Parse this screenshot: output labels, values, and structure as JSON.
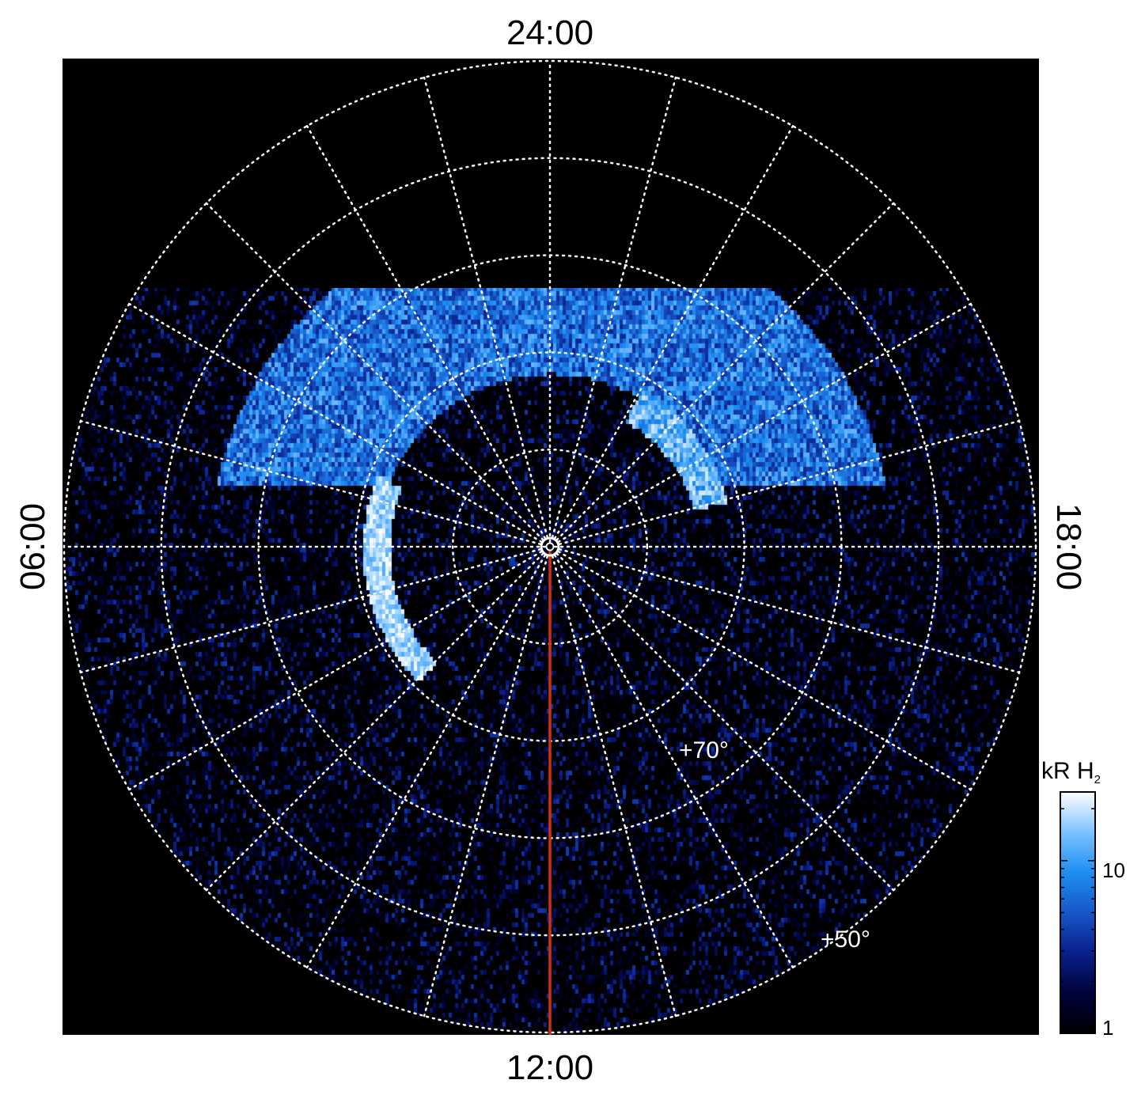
{
  "chart_data": {
    "type": "heatmap",
    "projection": "polar (north pole, local time vs latitude)",
    "local_time_labels": {
      "top": "24:00",
      "bottom": "12:00",
      "left": "06:00",
      "right": "18:00"
    },
    "latitude_labels": [
      {
        "text": "+70°",
        "latitude": 70
      },
      {
        "text": "+50°",
        "latitude": 50
      }
    ],
    "latitude_grid_deg": [
      80,
      70,
      60,
      50,
      40
    ],
    "local_time_grid_step_hours": 1,
    "grid": true,
    "noon_meridian_line": {
      "local_time": "12:00",
      "color": "#d03010"
    },
    "auroral_features": [
      {
        "name": "main oval dawn arc",
        "local_time_range": [
          "04:30",
          "09:00"
        ],
        "latitude": 72
      },
      {
        "name": "dusk arc",
        "local_time_range": [
          "19:00",
          "22:00"
        ],
        "latitude": 73
      },
      {
        "name": "nightside band",
        "local_time_range": [
          "18:00",
          "06:00"
        ],
        "latitude_range": [
          55,
          68
        ]
      }
    ],
    "colorbar": {
      "title": "kR H",
      "title_subscript": "2",
      "scale": "log",
      "range": [
        1,
        25
      ],
      "tick_labels": [
        "1",
        "10"
      ],
      "colors": [
        "#000000",
        "#00023a",
        "#0a1f8a",
        "#1756c8",
        "#1e8ef2",
        "#7cc2ff",
        "#ffffff"
      ]
    }
  }
}
